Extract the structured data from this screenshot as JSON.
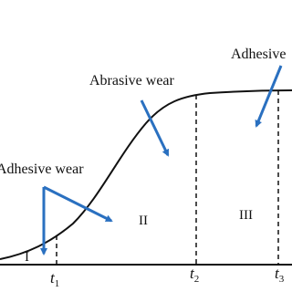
{
  "annotations": {
    "adhesive_left": "Adhesive wear",
    "abrasive": "Abrasive wear",
    "adhesive_right": "Adhesive"
  },
  "regions": [
    "I",
    "II",
    "III"
  ],
  "time_markers": [
    {
      "symbol": "t",
      "subscript": "1"
    },
    {
      "symbol": "t",
      "subscript": "2"
    },
    {
      "symbol": "t",
      "subscript": "3"
    }
  ]
}
